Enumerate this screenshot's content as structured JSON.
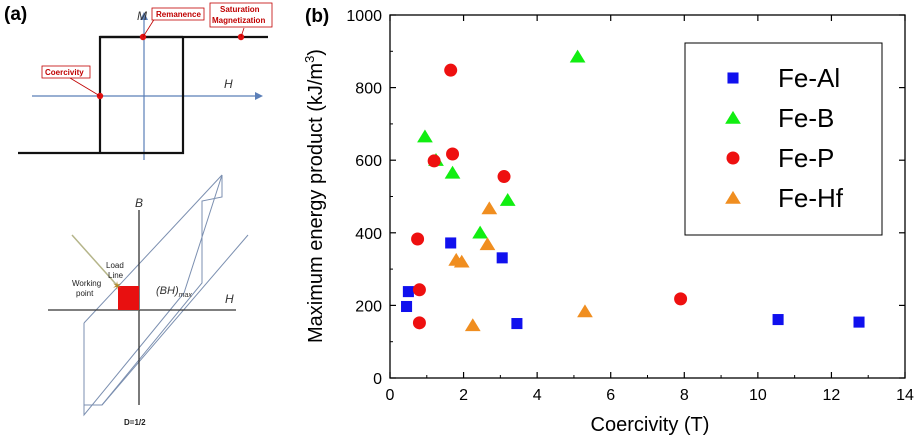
{
  "panel_a": {
    "label": "(a)",
    "hysteresis": {
      "axis_m": "M",
      "axis_h": "H",
      "remanence": "Remanence",
      "saturation_line1": "Saturation",
      "saturation_line2": "Magnetization",
      "coercivity": "Coercivity"
    },
    "bh": {
      "axis_b": "B",
      "axis_h": "H",
      "load_line1": "Load",
      "load_line2": "Line",
      "working_line1": "Working",
      "working_line2": "point",
      "bhmax_main": "(BH)",
      "bhmax_sub": "max",
      "d_label": "D=1/2"
    }
  },
  "panel_b": {
    "label": "(b)"
  },
  "chart_data": {
    "type": "scatter",
    "xlabel": "Coercivity (T)",
    "ylabel_main": "Maximum energy product (kJ/m",
    "ylabel_sup": "3",
    "ylabel_end": ")",
    "xlim": [
      0,
      14
    ],
    "ylim": [
      0,
      1000
    ],
    "xticks": [
      0,
      2,
      4,
      6,
      8,
      10,
      12,
      14
    ],
    "yticks": [
      0,
      200,
      400,
      600,
      800,
      1000
    ],
    "grid": false,
    "legend_position": "top-right",
    "series": [
      {
        "name": "Fe-Al",
        "marker": "square",
        "color": "#1010ee",
        "points": [
          [
            0.45,
            197
          ],
          [
            0.5,
            238
          ],
          [
            1.65,
            372
          ],
          [
            3.05,
            331
          ],
          [
            3.45,
            150
          ],
          [
            10.55,
            161
          ],
          [
            12.75,
            154
          ]
        ]
      },
      {
        "name": "Fe-B",
        "marker": "triangle",
        "color": "#11ee11",
        "points": [
          [
            0.95,
            665
          ],
          [
            1.25,
            600
          ],
          [
            1.7,
            565
          ],
          [
            5.1,
            885
          ],
          [
            3.2,
            490
          ],
          [
            2.45,
            400
          ]
        ]
      },
      {
        "name": "Fe-P",
        "marker": "circle",
        "color": "#ee1010",
        "points": [
          [
            0.75,
            383
          ],
          [
            0.8,
            243
          ],
          [
            0.8,
            152
          ],
          [
            1.2,
            598
          ],
          [
            1.65,
            848
          ],
          [
            1.7,
            617
          ],
          [
            3.1,
            555
          ],
          [
            7.9,
            218
          ]
        ]
      },
      {
        "name": "Fe-Hf",
        "marker": "triangle",
        "color": "#f08e20",
        "points": [
          [
            1.8,
            325
          ],
          [
            1.95,
            320
          ],
          [
            2.25,
            145
          ],
          [
            2.65,
            368
          ],
          [
            2.7,
            467
          ],
          [
            5.3,
            183
          ]
        ]
      }
    ]
  }
}
